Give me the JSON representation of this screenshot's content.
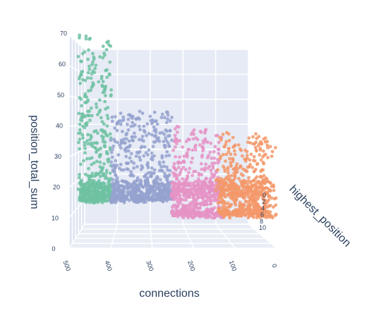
{
  "chart_data": {
    "type": "scatter",
    "subtype": "scatter3d",
    "title": "",
    "xlabel": "connections",
    "ylabel": "highest_position",
    "zlabel": "position_total_sum",
    "x_ticks": [
      "500",
      "400",
      "300",
      "200",
      "100",
      "0"
    ],
    "y_ticks": [
      "0",
      "2",
      "4",
      "6",
      "8",
      "10"
    ],
    "z_ticks": [
      "0",
      "10",
      "20",
      "30",
      "40",
      "50",
      "60",
      "70"
    ],
    "xlim": [
      500,
      0
    ],
    "ylim": [
      0,
      10
    ],
    "zlim": [
      0,
      70
    ],
    "grid": true,
    "legend": "none",
    "colors": {
      "green": "#6fc2a2",
      "blue": "#95a2cf",
      "pink": "#e593c6",
      "orange": "#f3986a",
      "pane": "#e6ebf5",
      "gridline": "#ffffff",
      "axis_text": "#2a3f5f"
    },
    "series": [
      {
        "color": "#6fc2a2",
        "x_range": [
          400,
          480
        ],
        "z_range": [
          15,
          70
        ],
        "y_range": [
          0,
          2
        ],
        "count": 380,
        "sample_points": [
          [
            475,
            0,
            70
          ],
          [
            478,
            0,
            63
          ],
          [
            470,
            0,
            58
          ],
          [
            465,
            1,
            50
          ],
          [
            458,
            1,
            45
          ],
          [
            470,
            1,
            40
          ],
          [
            462,
            2,
            35
          ],
          [
            440,
            0,
            28
          ],
          [
            425,
            1,
            25
          ],
          [
            410,
            2,
            22
          ],
          [
            455,
            0,
            18
          ],
          [
            430,
            1,
            16
          ]
        ]
      },
      {
        "color": "#95a2cf",
        "x_range": [
          250,
          400
        ],
        "z_range": [
          15,
          45
        ],
        "y_range": [
          0,
          3
        ],
        "count": 520,
        "sample_points": [
          [
            330,
            0,
            45
          ],
          [
            320,
            1,
            40
          ],
          [
            360,
            1,
            33
          ],
          [
            300,
            0,
            30
          ],
          [
            280,
            2,
            27
          ],
          [
            350,
            1,
            24
          ],
          [
            310,
            2,
            21
          ],
          [
            380,
            1,
            18
          ],
          [
            270,
            0,
            17
          ],
          [
            255,
            2,
            16
          ]
        ]
      },
      {
        "color": "#e593c6",
        "x_range": [
          130,
          250
        ],
        "z_range": [
          10,
          40
        ],
        "y_range": [
          0,
          3
        ],
        "count": 480,
        "sample_points": [
          [
            240,
            0,
            40
          ],
          [
            200,
            1,
            38
          ],
          [
            230,
            2,
            35
          ],
          [
            180,
            0,
            30
          ],
          [
            150,
            1,
            26
          ],
          [
            210,
            2,
            23
          ],
          [
            170,
            1,
            20
          ],
          [
            140,
            0,
            18
          ],
          [
            225,
            2,
            15
          ],
          [
            190,
            1,
            11
          ]
        ]
      },
      {
        "color": "#f3986a",
        "x_range": [
          0,
          130
        ],
        "z_range": [
          10,
          38
        ],
        "y_range": [
          0,
          4
        ],
        "count": 500,
        "sample_points": [
          [
            120,
            0,
            38
          ],
          [
            100,
            1,
            33
          ],
          [
            60,
            2,
            30
          ],
          [
            110,
            0,
            27
          ],
          [
            80,
            1,
            24
          ],
          [
            40,
            2,
            22
          ],
          [
            20,
            3,
            20
          ],
          [
            90,
            1,
            18
          ],
          [
            50,
            2,
            16
          ],
          [
            100,
            3,
            12
          ]
        ]
      }
    ]
  }
}
